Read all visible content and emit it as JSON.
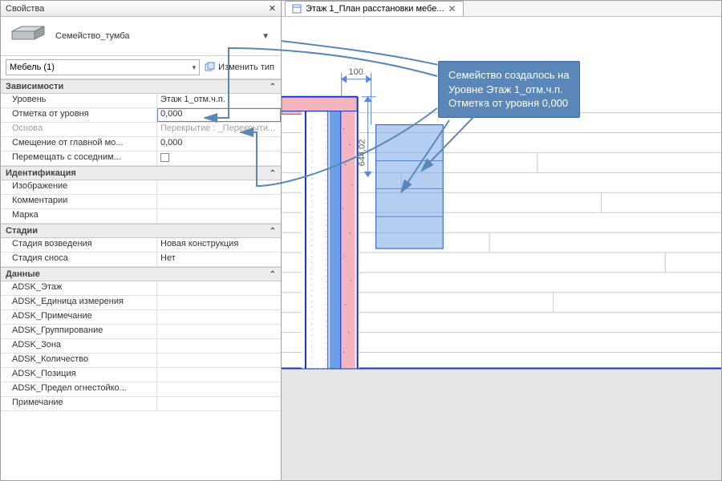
{
  "panel": {
    "title": "Свойства",
    "close_glyph": "✕",
    "family_name": "Семейство_тумба",
    "filter_label": "Мебель (1)",
    "edit_type_label": "Изменить тип"
  },
  "sections": [
    {
      "title": "Зависимости",
      "rows": [
        {
          "k": "Уровень",
          "v": "Этаж 1_отм.ч.п.",
          "interactable": true
        },
        {
          "k": "Отметка от уровня",
          "v": "0,000",
          "interactable": true,
          "selected": true
        },
        {
          "k": "Основа",
          "v": "Перекрытие : _Перекрыти...",
          "interactable": false,
          "disabled": true
        },
        {
          "k": "Смещение от главной мо...",
          "v": "0,000",
          "interactable": true
        },
        {
          "k": "Перемещать с соседним...",
          "v": "",
          "interactable": true,
          "checkbox": true
        }
      ]
    },
    {
      "title": "Идентификация",
      "rows": [
        {
          "k": "Изображение",
          "v": "",
          "interactable": true
        },
        {
          "k": "Комментарии",
          "v": "",
          "interactable": true
        },
        {
          "k": "Марка",
          "v": "",
          "interactable": true
        }
      ]
    },
    {
      "title": "Стадии",
      "rows": [
        {
          "k": "Стадия возведения",
          "v": "Новая конструкция",
          "interactable": true
        },
        {
          "k": "Стадия сноса",
          "v": "Нет",
          "interactable": true
        }
      ]
    },
    {
      "title": "Данные",
      "rows": [
        {
          "k": "ADSK_Этаж",
          "v": "",
          "interactable": true
        },
        {
          "k": "ADSK_Единица измерения",
          "v": "",
          "interactable": true
        },
        {
          "k": "ADSK_Примечание",
          "v": "",
          "interactable": true
        },
        {
          "k": "ADSK_Группирование",
          "v": "",
          "interactable": true
        },
        {
          "k": "ADSK_Зона",
          "v": "",
          "interactable": true
        },
        {
          "k": "ADSK_Количество",
          "v": "",
          "interactable": true
        },
        {
          "k": "ADSK_Позиция",
          "v": "",
          "interactable": true
        },
        {
          "k": "ADSK_Предел огнестойко...",
          "v": "",
          "interactable": true
        },
        {
          "k": "Примечание",
          "v": "",
          "interactable": true
        }
      ]
    }
  ],
  "tab": {
    "label": "Этаж 1_План расстановки мебе...",
    "close_glyph": "✕"
  },
  "callout_text": "Семейство создалось на\nУровне Этаж 1_отм.ч.п.\nОтметка от уровня 0,000",
  "drawing": {
    "dim_top_label": "100",
    "dim_side_label": "644,02",
    "colors": {
      "wall_outer": "#1030c0",
      "wall_fill1": "#6aa0e8",
      "wall_fill2": "#f5b5c0",
      "brick_line": "#c9c9c9",
      "dim_line": "#5b87da",
      "selection_fill": "#7aa6e6",
      "selection_edge": "#3a6dc8",
      "floor_fill": "#e6e6e6",
      "callout_bg": "#5b87b8",
      "callout_border": "#456a94",
      "arrow": "#5b87b8"
    }
  }
}
